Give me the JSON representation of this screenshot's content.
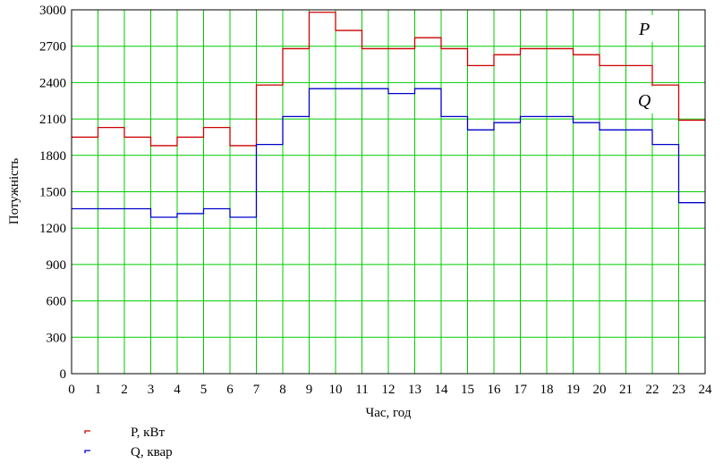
{
  "chart_data": {
    "type": "line",
    "step": true,
    "xlabel": "Час, год",
    "ylabel": "Потужність",
    "xlim": [
      0,
      24
    ],
    "ylim": [
      0,
      3000
    ],
    "x_ticks": [
      0,
      1,
      2,
      3,
      4,
      5,
      6,
      7,
      8,
      9,
      10,
      11,
      12,
      13,
      14,
      15,
      16,
      17,
      18,
      19,
      20,
      21,
      22,
      23,
      24
    ],
    "y_ticks": [
      0,
      300,
      600,
      900,
      1200,
      1500,
      1800,
      2100,
      2400,
      2700,
      3000
    ],
    "grid": true,
    "grid_color": "#00cc00",
    "x": [
      0,
      1,
      2,
      3,
      4,
      5,
      6,
      7,
      8,
      9,
      10,
      11,
      12,
      13,
      14,
      15,
      16,
      17,
      18,
      19,
      20,
      21,
      22,
      23
    ],
    "series": [
      {
        "name": "P, кВт",
        "curve_label": "P",
        "color": "#cc0000",
        "values": [
          1950,
          2030,
          1950,
          1880,
          1950,
          2030,
          1880,
          2380,
          2680,
          2980,
          2830,
          2680,
          2680,
          2770,
          2680,
          2540,
          2630,
          2680,
          2680,
          2630,
          2540,
          2540,
          2380,
          2090
        ]
      },
      {
        "name": "Q, квар",
        "curve_label": "Q",
        "color": "#0000cc",
        "values": [
          1360,
          1360,
          1360,
          1290,
          1320,
          1360,
          1290,
          1890,
          2120,
          2350,
          2350,
          2350,
          2310,
          2350,
          2120,
          2010,
          2070,
          2120,
          2120,
          2070,
          2010,
          2010,
          1890,
          1410
        ]
      }
    ]
  }
}
